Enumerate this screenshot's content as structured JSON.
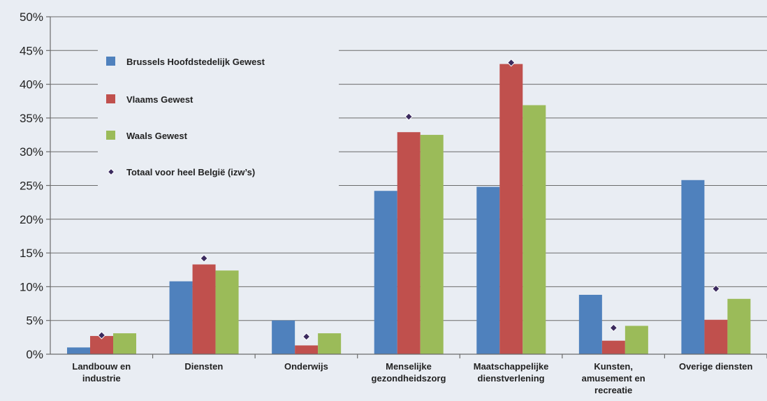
{
  "chart_data": {
    "type": "bar",
    "categories": [
      [
        "Landbouw en",
        "industrie"
      ],
      [
        "Diensten"
      ],
      [
        "Onderwijs"
      ],
      [
        "Menselijke",
        "gezondheidszorg"
      ],
      [
        "Maatschappelijke",
        "dienstverlening"
      ],
      [
        "Kunsten,",
        "amusement en",
        "recreatie"
      ],
      [
        "Overige diensten"
      ]
    ],
    "series": [
      {
        "name": "Brussels Hoofdstedelijk Gewest",
        "color": "#4f81bd",
        "values": [
          1.0,
          10.8,
          5.0,
          24.2,
          24.8,
          8.8,
          25.8
        ]
      },
      {
        "name": "Vlaams Gewest",
        "color": "#c0504d",
        "values": [
          2.7,
          13.3,
          1.3,
          32.9,
          43.0,
          2.0,
          5.1
        ]
      },
      {
        "name": "Waals Gewest",
        "color": "#9bbb59",
        "values": [
          3.1,
          12.4,
          3.1,
          32.5,
          36.9,
          4.2,
          8.2
        ]
      }
    ],
    "markers": {
      "name": "Totaal voor heel België (izw’s)",
      "color": "#3b2a5e",
      "values": [
        2.8,
        14.2,
        2.6,
        35.2,
        43.2,
        3.9,
        9.7
      ]
    },
    "yticks": [
      "0%",
      "5%",
      "10%",
      "15%",
      "20%",
      "25%",
      "30%",
      "35%",
      "40%",
      "45%",
      "50%"
    ],
    "ylim": [
      0,
      50
    ],
    "grid": true,
    "legend_position": "top-left"
  }
}
